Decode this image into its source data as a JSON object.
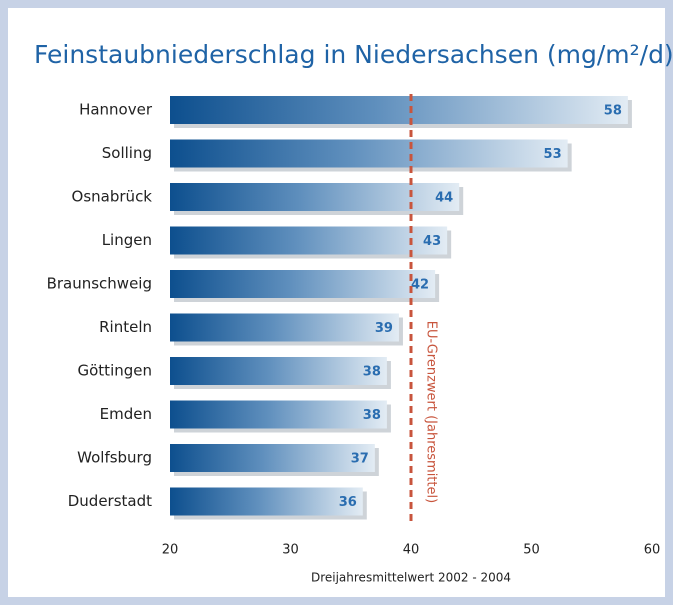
{
  "chart_data": {
    "type": "bar",
    "orientation": "horizontal",
    "title": "Feinstaubniederschlag in Niedersachsen (mg/m²/d)",
    "x_label": "Dreijahresmittelwert 2002 - 2004",
    "categories": [
      "Hannover",
      "Solling",
      "Osnabrück",
      "Lingen",
      "Braunschweig",
      "Rinteln",
      "Göttingen",
      "Emden",
      "Wolfsburg",
      "Duderstadt"
    ],
    "values": [
      58,
      53,
      44,
      43,
      42,
      39,
      38,
      38,
      37,
      36
    ],
    "color": "#0d4f8e",
    "xlim": [
      20,
      60
    ],
    "xticks": [
      20,
      30,
      40,
      50,
      60
    ],
    "reference_line": {
      "value": 40,
      "label": "EU-Grenzwert (Jahresmittel)",
      "color": "#c8553d"
    }
  }
}
